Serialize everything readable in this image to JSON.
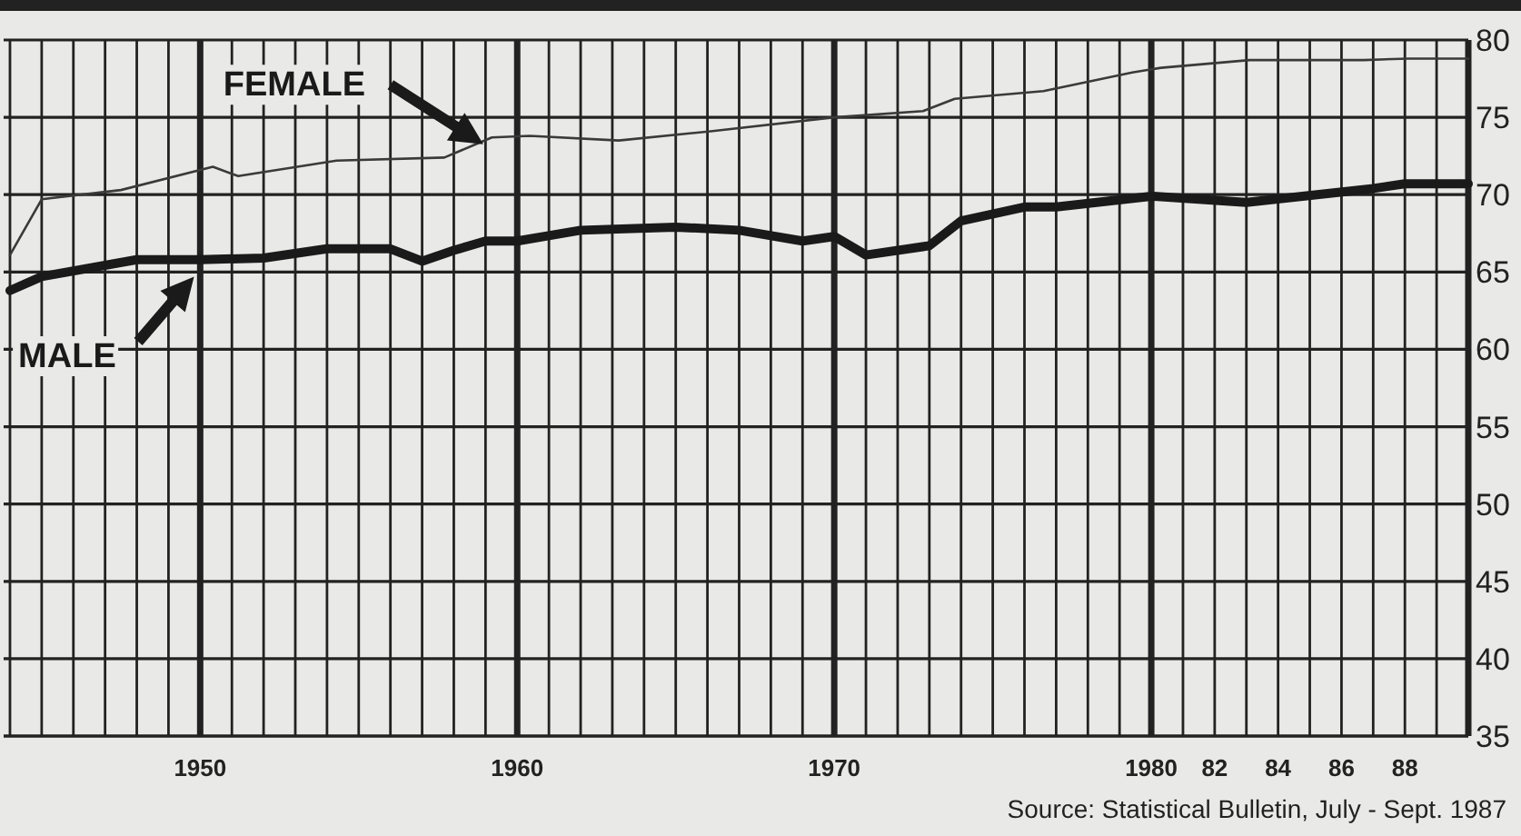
{
  "chart_data": {
    "type": "line",
    "x": [
      1944,
      1945,
      1948,
      1950,
      1952,
      1954,
      1956,
      1957,
      1958,
      1959,
      1960,
      1962,
      1965,
      1967,
      1969,
      1970,
      1971,
      1973,
      1974,
      1976,
      1977,
      1980,
      1983,
      1987,
      1988,
      1990
    ],
    "series": [
      {
        "name": "FEMALE",
        "color": "#3a3a3a",
        "x": [
          1944,
          1945,
          1947.5,
          1950.4,
          1951.2,
          1954.3,
          1957.7,
          1959.2,
          1960.4,
          1963.2,
          1966.1,
          1970,
          1972.8,
          1973.8,
          1976.6,
          1979.4,
          1980.3,
          1983.1,
          1986.7,
          1988.1,
          1990
        ],
        "values": [
          66.1,
          69.7,
          70.3,
          71.8,
          71.2,
          72.2,
          72.4,
          73.7,
          73.8,
          73.5,
          74.1,
          75.0,
          75.4,
          76.2,
          76.7,
          77.9,
          78.2,
          78.7,
          78.7,
          78.8,
          78.8
        ]
      },
      {
        "name": "MALE",
        "color": "#1a1a1a",
        "values": [
          63.8,
          64.7,
          65.8,
          65.8,
          65.9,
          66.5,
          66.5,
          65.7,
          66.4,
          67.0,
          67.0,
          67.7,
          67.9,
          67.7,
          67.0,
          67.3,
          66.1,
          66.7,
          68.3,
          69.2,
          69.2,
          69.9,
          69.5,
          70.4,
          70.7,
          70.7
        ]
      }
    ],
    "xlim": [
      1943.8,
      1990
    ],
    "xticks": [
      1950,
      1960,
      1970,
      1980,
      {
        "value": 1982,
        "label": "82"
      },
      {
        "value": 1984,
        "label": "84"
      },
      {
        "value": 1986,
        "label": "86"
      },
      {
        "value": 1988,
        "label": "88"
      }
    ],
    "ylim": [
      35,
      80
    ],
    "yticks": [
      35,
      40,
      45,
      50,
      55,
      60,
      65,
      70,
      75,
      80
    ],
    "grid": true,
    "marker": "none",
    "line_style": "solid",
    "annotations": [
      "Source: Statistical Bulletin, July - Sept. 1987"
    ]
  }
}
